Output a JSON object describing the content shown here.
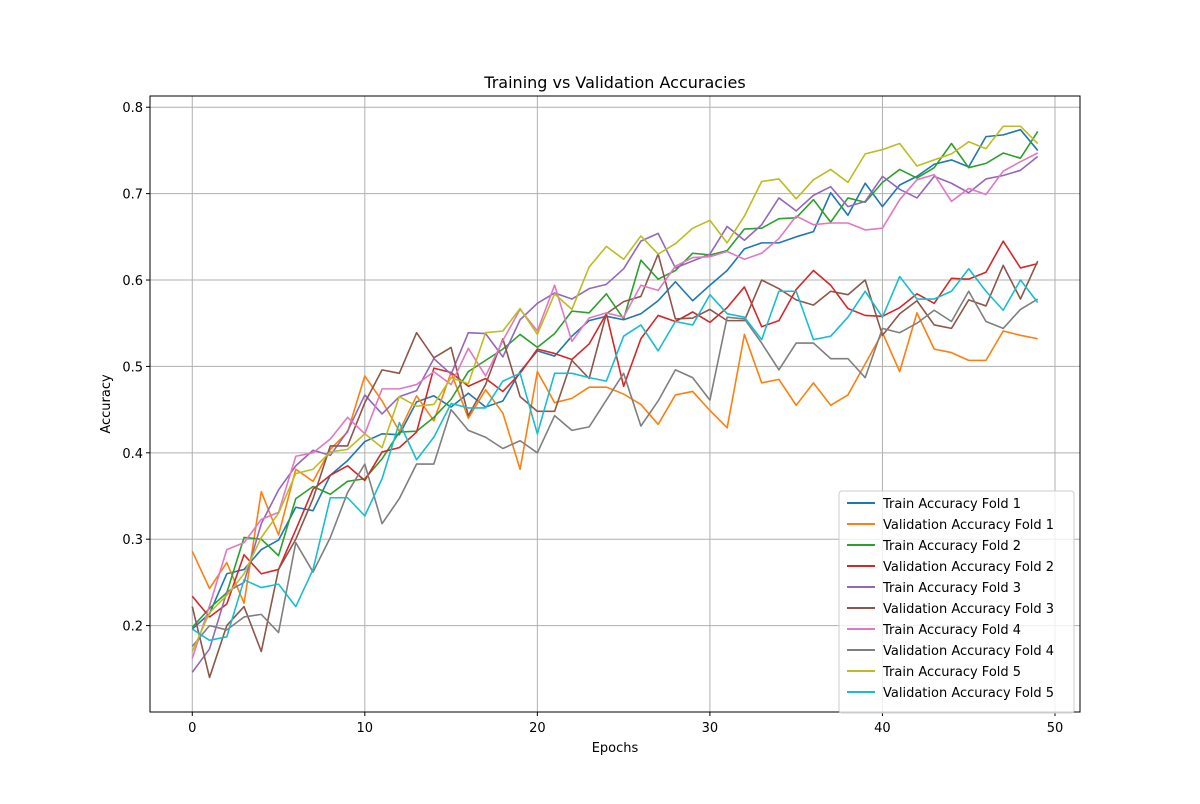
{
  "chart_data": {
    "type": "line",
    "title": "Training vs Validation Accuracies",
    "xlabel": "Epochs",
    "ylabel": "Accuracy",
    "xlim": [
      -2.45,
      51.45
    ],
    "ylim": [
      0.1,
      0.813
    ],
    "xticks": [
      0,
      10,
      20,
      30,
      40,
      50
    ],
    "yticks": [
      0.2,
      0.3,
      0.4,
      0.5,
      0.6,
      0.7,
      0.8
    ],
    "grid": true,
    "legend_position": "lower-right",
    "x": [
      0,
      1,
      2,
      3,
      4,
      5,
      6,
      7,
      8,
      9,
      10,
      11,
      12,
      13,
      14,
      15,
      16,
      17,
      18,
      19,
      20,
      21,
      22,
      23,
      24,
      25,
      26,
      27,
      28,
      29,
      30,
      31,
      32,
      33,
      34,
      35,
      36,
      37,
      38,
      39,
      40,
      41,
      42,
      43,
      44,
      45,
      46,
      47,
      48,
      49
    ],
    "series": [
      {
        "name": "Train Accuracy Fold 1",
        "color": "#1f77b4",
        "values": [
          0.196,
          0.214,
          0.26,
          0.265,
          0.288,
          0.299,
          0.337,
          0.333,
          0.374,
          0.391,
          0.413,
          0.422,
          0.421,
          0.459,
          0.466,
          0.453,
          0.469,
          0.453,
          0.46,
          0.494,
          0.518,
          0.512,
          0.535,
          0.553,
          0.558,
          0.554,
          0.561,
          0.576,
          0.598,
          0.576,
          0.594,
          0.611,
          0.636,
          0.643,
          0.643,
          0.65,
          0.656,
          0.701,
          0.675,
          0.712,
          0.685,
          0.71,
          0.72,
          0.734,
          0.739,
          0.731,
          0.766,
          0.768,
          0.774,
          0.75
        ]
      },
      {
        "name": "Validation Accuracy Fold 1",
        "color": "#ff7f0e",
        "values": [
          0.286,
          0.243,
          0.273,
          0.226,
          0.355,
          0.305,
          0.381,
          0.367,
          0.404,
          0.424,
          0.489,
          0.46,
          0.425,
          0.466,
          0.437,
          0.493,
          0.44,
          0.473,
          0.446,
          0.381,
          0.494,
          0.458,
          0.463,
          0.476,
          0.476,
          0.468,
          0.456,
          0.433,
          0.467,
          0.471,
          0.449,
          0.429,
          0.537,
          0.481,
          0.485,
          0.455,
          0.481,
          0.455,
          0.467,
          0.503,
          0.539,
          0.494,
          0.562,
          0.52,
          0.516,
          0.507,
          0.507,
          0.541,
          0.536,
          0.532
        ]
      },
      {
        "name": "Train Accuracy Fold 2",
        "color": "#2ca02c",
        "values": [
          0.198,
          0.22,
          0.238,
          0.302,
          0.3,
          0.281,
          0.347,
          0.361,
          0.352,
          0.367,
          0.37,
          0.393,
          0.424,
          0.425,
          0.441,
          0.462,
          0.494,
          0.507,
          0.52,
          0.537,
          0.522,
          0.538,
          0.564,
          0.562,
          0.584,
          0.555,
          0.623,
          0.601,
          0.611,
          0.631,
          0.629,
          0.634,
          0.659,
          0.66,
          0.671,
          0.672,
          0.693,
          0.667,
          0.695,
          0.69,
          0.713,
          0.728,
          0.718,
          0.73,
          0.758,
          0.73,
          0.735,
          0.747,
          0.741,
          0.772
        ]
      },
      {
        "name": "Validation Accuracy Fold 2",
        "color": "#d62728",
        "values": [
          0.234,
          0.21,
          0.225,
          0.282,
          0.26,
          0.265,
          0.311,
          0.358,
          0.374,
          0.385,
          0.368,
          0.401,
          0.406,
          0.424,
          0.498,
          0.493,
          0.477,
          0.486,
          0.471,
          0.492,
          0.52,
          0.515,
          0.508,
          0.526,
          0.561,
          0.477,
          0.532,
          0.559,
          0.552,
          0.563,
          0.551,
          0.568,
          0.592,
          0.546,
          0.553,
          0.589,
          0.611,
          0.594,
          0.567,
          0.559,
          0.558,
          0.568,
          0.584,
          0.573,
          0.602,
          0.601,
          0.609,
          0.645,
          0.614,
          0.619
        ]
      },
      {
        "name": "Train Accuracy Fold 3",
        "color": "#9467bd",
        "values": [
          0.146,
          0.173,
          0.239,
          0.25,
          0.318,
          0.357,
          0.385,
          0.403,
          0.397,
          0.425,
          0.467,
          0.445,
          0.465,
          0.472,
          0.509,
          0.491,
          0.539,
          0.538,
          0.511,
          0.554,
          0.573,
          0.585,
          0.578,
          0.59,
          0.595,
          0.613,
          0.645,
          0.654,
          0.614,
          0.622,
          0.63,
          0.662,
          0.646,
          0.664,
          0.695,
          0.68,
          0.698,
          0.708,
          0.685,
          0.691,
          0.72,
          0.705,
          0.695,
          0.72,
          0.712,
          0.701,
          0.717,
          0.721,
          0.727,
          0.743
        ]
      },
      {
        "name": "Validation Accuracy Fold 3",
        "color": "#8c564b",
        "values": [
          0.222,
          0.14,
          0.2,
          0.222,
          0.17,
          0.265,
          0.3,
          0.347,
          0.408,
          0.408,
          0.458,
          0.496,
          0.492,
          0.539,
          0.51,
          0.522,
          0.443,
          0.479,
          0.532,
          0.465,
          0.448,
          0.448,
          0.507,
          0.486,
          0.561,
          0.575,
          0.581,
          0.63,
          0.555,
          0.556,
          0.566,
          0.553,
          0.553,
          0.6,
          0.59,
          0.577,
          0.571,
          0.587,
          0.583,
          0.6,
          0.536,
          0.561,
          0.576,
          0.548,
          0.544,
          0.577,
          0.57,
          0.617,
          0.578,
          0.622
        ]
      },
      {
        "name": "Train Accuracy Fold 4",
        "color": "#e377c2",
        "values": [
          0.162,
          0.223,
          0.288,
          0.296,
          0.323,
          0.331,
          0.396,
          0.4,
          0.416,
          0.441,
          0.422,
          0.474,
          0.474,
          0.479,
          0.494,
          0.479,
          0.521,
          0.489,
          0.53,
          0.566,
          0.541,
          0.594,
          0.529,
          0.556,
          0.562,
          0.557,
          0.594,
          0.588,
          0.616,
          0.626,
          0.627,
          0.633,
          0.624,
          0.631,
          0.648,
          0.674,
          0.664,
          0.666,
          0.666,
          0.658,
          0.66,
          0.693,
          0.716,
          0.722,
          0.691,
          0.706,
          0.699,
          0.726,
          0.737,
          0.747
        ]
      },
      {
        "name": "Validation Accuracy Fold 4",
        "color": "#7f7f7f",
        "values": [
          0.176,
          0.2,
          0.195,
          0.21,
          0.213,
          0.192,
          0.296,
          0.262,
          0.302,
          0.354,
          0.387,
          0.318,
          0.347,
          0.387,
          0.387,
          0.45,
          0.426,
          0.418,
          0.405,
          0.414,
          0.4,
          0.443,
          0.426,
          0.43,
          0.461,
          0.492,
          0.431,
          0.46,
          0.496,
          0.487,
          0.461,
          0.557,
          0.555,
          0.527,
          0.496,
          0.527,
          0.527,
          0.509,
          0.509,
          0.487,
          0.544,
          0.539,
          0.55,
          0.565,
          0.552,
          0.587,
          0.552,
          0.544,
          0.566,
          0.578
        ]
      },
      {
        "name": "Train Accuracy Fold 5",
        "color": "#bcbd22",
        "values": [
          0.17,
          0.215,
          0.235,
          0.26,
          0.302,
          0.33,
          0.376,
          0.381,
          0.401,
          0.404,
          0.422,
          0.406,
          0.465,
          0.454,
          0.456,
          0.487,
          0.48,
          0.539,
          0.541,
          0.567,
          0.537,
          0.584,
          0.566,
          0.615,
          0.639,
          0.624,
          0.651,
          0.63,
          0.642,
          0.66,
          0.669,
          0.643,
          0.674,
          0.714,
          0.717,
          0.694,
          0.716,
          0.728,
          0.713,
          0.746,
          0.751,
          0.758,
          0.732,
          0.739,
          0.746,
          0.76,
          0.752,
          0.778,
          0.778,
          0.758
        ]
      },
      {
        "name": "Validation Accuracy Fold 5",
        "color": "#17becf",
        "values": [
          0.196,
          0.183,
          0.187,
          0.253,
          0.244,
          0.248,
          0.222,
          0.265,
          0.348,
          0.348,
          0.327,
          0.37,
          0.435,
          0.392,
          0.418,
          0.457,
          0.452,
          0.452,
          0.483,
          0.492,
          0.422,
          0.492,
          0.492,
          0.487,
          0.483,
          0.535,
          0.548,
          0.518,
          0.552,
          0.548,
          0.583,
          0.561,
          0.557,
          0.531,
          0.587,
          0.587,
          0.531,
          0.535,
          0.557,
          0.587,
          0.557,
          0.604,
          0.578,
          0.578,
          0.587,
          0.613,
          0.587,
          0.565,
          0.6,
          0.574
        ]
      }
    ]
  }
}
